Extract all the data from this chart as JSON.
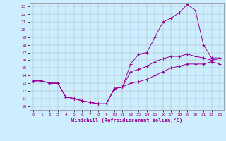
{
  "xlabel": "Windchill (Refroidissement éolien,°C)",
  "bg_color": "#cceeff",
  "line_color": "#990099",
  "marker": "+",
  "xlim": [
    -0.5,
    23.5
  ],
  "ylim": [
    9.5,
    23.5
  ],
  "xticks": [
    0,
    1,
    2,
    3,
    4,
    5,
    6,
    7,
    8,
    9,
    10,
    11,
    12,
    13,
    14,
    15,
    16,
    17,
    18,
    19,
    20,
    21,
    22,
    23
  ],
  "yticks": [
    10,
    11,
    12,
    13,
    14,
    15,
    16,
    17,
    18,
    19,
    20,
    21,
    22,
    23
  ],
  "series": [
    [
      13.3,
      13.3,
      13.0,
      13.0,
      11.2,
      11.0,
      10.7,
      10.5,
      10.3,
      10.3,
      12.3,
      12.5,
      13.0,
      13.2,
      13.5,
      14.0,
      14.5,
      15.0,
      15.2,
      15.5,
      15.5,
      15.5,
      15.8,
      15.5
    ],
    [
      13.3,
      13.3,
      13.0,
      13.0,
      11.2,
      11.0,
      10.7,
      10.5,
      10.3,
      10.3,
      12.3,
      12.5,
      14.5,
      14.8,
      15.2,
      15.8,
      16.2,
      16.5,
      16.5,
      16.8,
      16.5,
      16.3,
      16.0,
      16.2
    ],
    [
      13.3,
      13.3,
      13.0,
      13.0,
      11.2,
      11.0,
      10.7,
      10.5,
      10.3,
      10.3,
      12.3,
      12.5,
      15.5,
      16.8,
      17.0,
      19.0,
      21.0,
      21.5,
      22.2,
      23.3,
      22.5,
      18.0,
      16.3,
      16.3
    ]
  ]
}
